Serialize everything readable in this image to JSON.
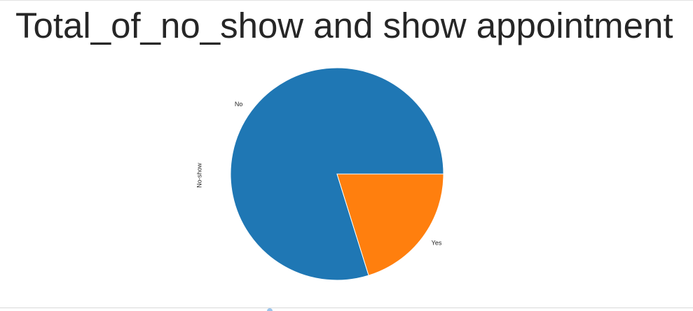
{
  "chart_data": {
    "type": "pie",
    "title": "Total_of_no_show and show appointment",
    "ylabel": "No-show",
    "categories": [
      "No",
      "Yes"
    ],
    "values": [
      79.8,
      20.2
    ],
    "colors": [
      "#1f77b4",
      "#ff7f0e"
    ],
    "startangle_deg": 0,
    "direction": "counterclockwise",
    "legend": "none"
  }
}
